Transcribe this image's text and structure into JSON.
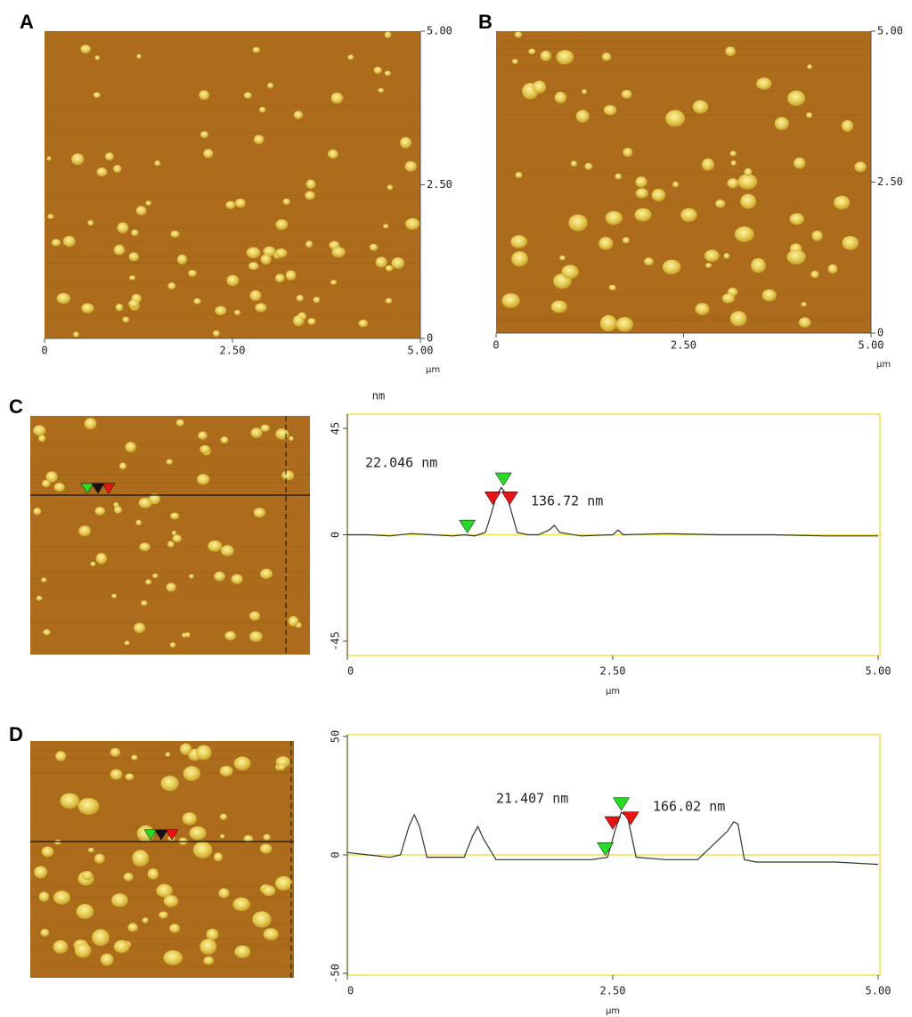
{
  "chart_data": [
    {
      "type": "image",
      "panel": "A",
      "xlim": [
        0,
        5
      ],
      "ylim": [
        0,
        5
      ],
      "xticks": [
        0,
        {
          "value": 2.5,
          "label": "2.50"
        },
        {
          "value": 5,
          "label": "5.00"
        }
      ],
      "yticks": [
        0,
        {
          "value": 2.5,
          "label": "2.50"
        },
        {
          "value": 5,
          "label": "5.00"
        }
      ],
      "x_label": "µm"
    },
    {
      "type": "image",
      "panel": "B",
      "xlim": [
        0,
        5
      ],
      "ylim": [
        0,
        5
      ],
      "xticks": [
        0,
        {
          "value": 2.5,
          "label": "2.50"
        },
        {
          "value": 5,
          "label": "5.00"
        }
      ],
      "yticks": [
        0,
        {
          "value": 2.5,
          "label": "2.50"
        },
        {
          "value": 5,
          "label": "5.00"
        }
      ],
      "x_label": "µm"
    },
    {
      "type": "line",
      "panel": "C",
      "y_label": "nm",
      "x_label": "µm",
      "xlim": [
        0,
        5
      ],
      "ylim": [
        -45,
        45
      ],
      "xticks": [
        0,
        {
          "value": 2.5,
          "label": "2.50"
        },
        {
          "value": 5,
          "label": "5.00"
        }
      ],
      "yticks": [
        -45,
        0,
        45
      ],
      "x": [
        0,
        0.2,
        0.4,
        0.6,
        0.8,
        1.0,
        1.1,
        1.2,
        1.3,
        1.35,
        1.4,
        1.45,
        1.5,
        1.55,
        1.6,
        1.7,
        1.8,
        1.9,
        1.95,
        2.0,
        2.2,
        2.5,
        2.55,
        2.6,
        3.0,
        3.5,
        4.0,
        4.5,
        5.0
      ],
      "series": [
        {
          "color": "#333333",
          "values": [
            0,
            0,
            -0.5,
            0.5,
            0,
            -0.5,
            0,
            -0.5,
            1,
            8,
            16,
            20,
            17,
            9,
            1,
            0,
            0,
            2,
            4,
            1,
            -0.5,
            0,
            2,
            0,
            0.5,
            0,
            0,
            -0.5,
            -0.5
          ]
        }
      ],
      "markers": [
        {
          "x": 1.13,
          "y": 0,
          "color": "#22dd22"
        },
        {
          "x": 1.47,
          "y": 20,
          "color": "#22dd22"
        },
        {
          "x": 1.37,
          "y": 12,
          "color": "#ee1111"
        },
        {
          "x": 1.53,
          "y": 12,
          "color": "#ee1111"
        }
      ],
      "annotations": [
        {
          "text": "22.046 nm",
          "color": "#33dd33"
        },
        {
          "text": "136.72 nm",
          "color": "#ee2222"
        }
      ]
    },
    {
      "type": "line",
      "panel": "D",
      "x_label": "µm",
      "xlim": [
        0,
        5
      ],
      "ylim": [
        -50,
        50
      ],
      "xticks": [
        0,
        {
          "value": 2.5,
          "label": "2.50"
        },
        {
          "value": 5,
          "label": "5.00"
        }
      ],
      "yticks": [
        -50,
        0,
        50
      ],
      "x": [
        0,
        0.2,
        0.4,
        0.5,
        0.58,
        0.63,
        0.68,
        0.75,
        0.9,
        1.1,
        1.18,
        1.23,
        1.28,
        1.4,
        1.7,
        2.0,
        2.3,
        2.45,
        2.52,
        2.58,
        2.64,
        2.72,
        3.0,
        3.3,
        3.58,
        3.64,
        3.68,
        3.74,
        3.85,
        4.2,
        4.6,
        5.0
      ],
      "series": [
        {
          "color": "#333333",
          "values": [
            1,
            0,
            -1,
            0,
            12,
            17,
            12,
            -1,
            -1,
            -1,
            8,
            12,
            7,
            -2,
            -2,
            -2,
            -2,
            -1,
            10,
            18,
            16,
            -1,
            -2,
            -2,
            10,
            14,
            13,
            -2,
            -3,
            -3,
            -3,
            -4
          ]
        }
      ],
      "markers": [
        {
          "x": 2.43,
          "y": -1,
          "color": "#22dd22"
        },
        {
          "x": 2.58,
          "y": 18,
          "color": "#22dd22"
        },
        {
          "x": 2.5,
          "y": 10,
          "color": "#ee1111"
        },
        {
          "x": 2.67,
          "y": 12,
          "color": "#ee1111"
        }
      ],
      "annotations": [
        {
          "text": "21.407 nm",
          "color": "#33dd33"
        },
        {
          "text": "166.02 nm",
          "color": "#ee2222"
        }
      ]
    }
  ]
}
